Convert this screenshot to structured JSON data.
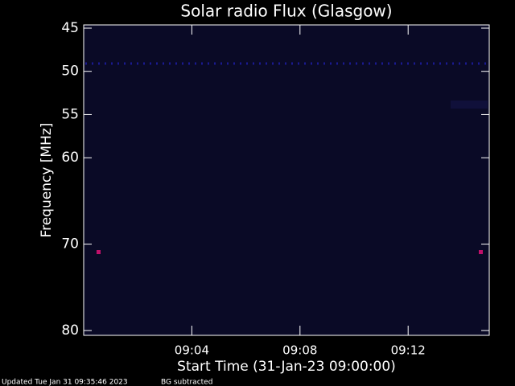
{
  "chart_data": {
    "type": "spectrogram",
    "title": "Solar radio Flux (Glasgow)",
    "xlabel": "Start Time (31-Jan-23 09:00:00)",
    "ylabel": "Frequency [MHz]",
    "xlim": [
      "09:00",
      "09:15"
    ],
    "xticks": [
      "09:04",
      "09:08",
      "09:12"
    ],
    "ylim": [
      80,
      45
    ],
    "yticks": [
      45,
      50,
      55,
      60,
      70,
      80
    ],
    "footer": "Updated Tue Jan 31 09:35:46 2023",
    "note": "BG subtracted",
    "background": "#0a0a26"
  }
}
